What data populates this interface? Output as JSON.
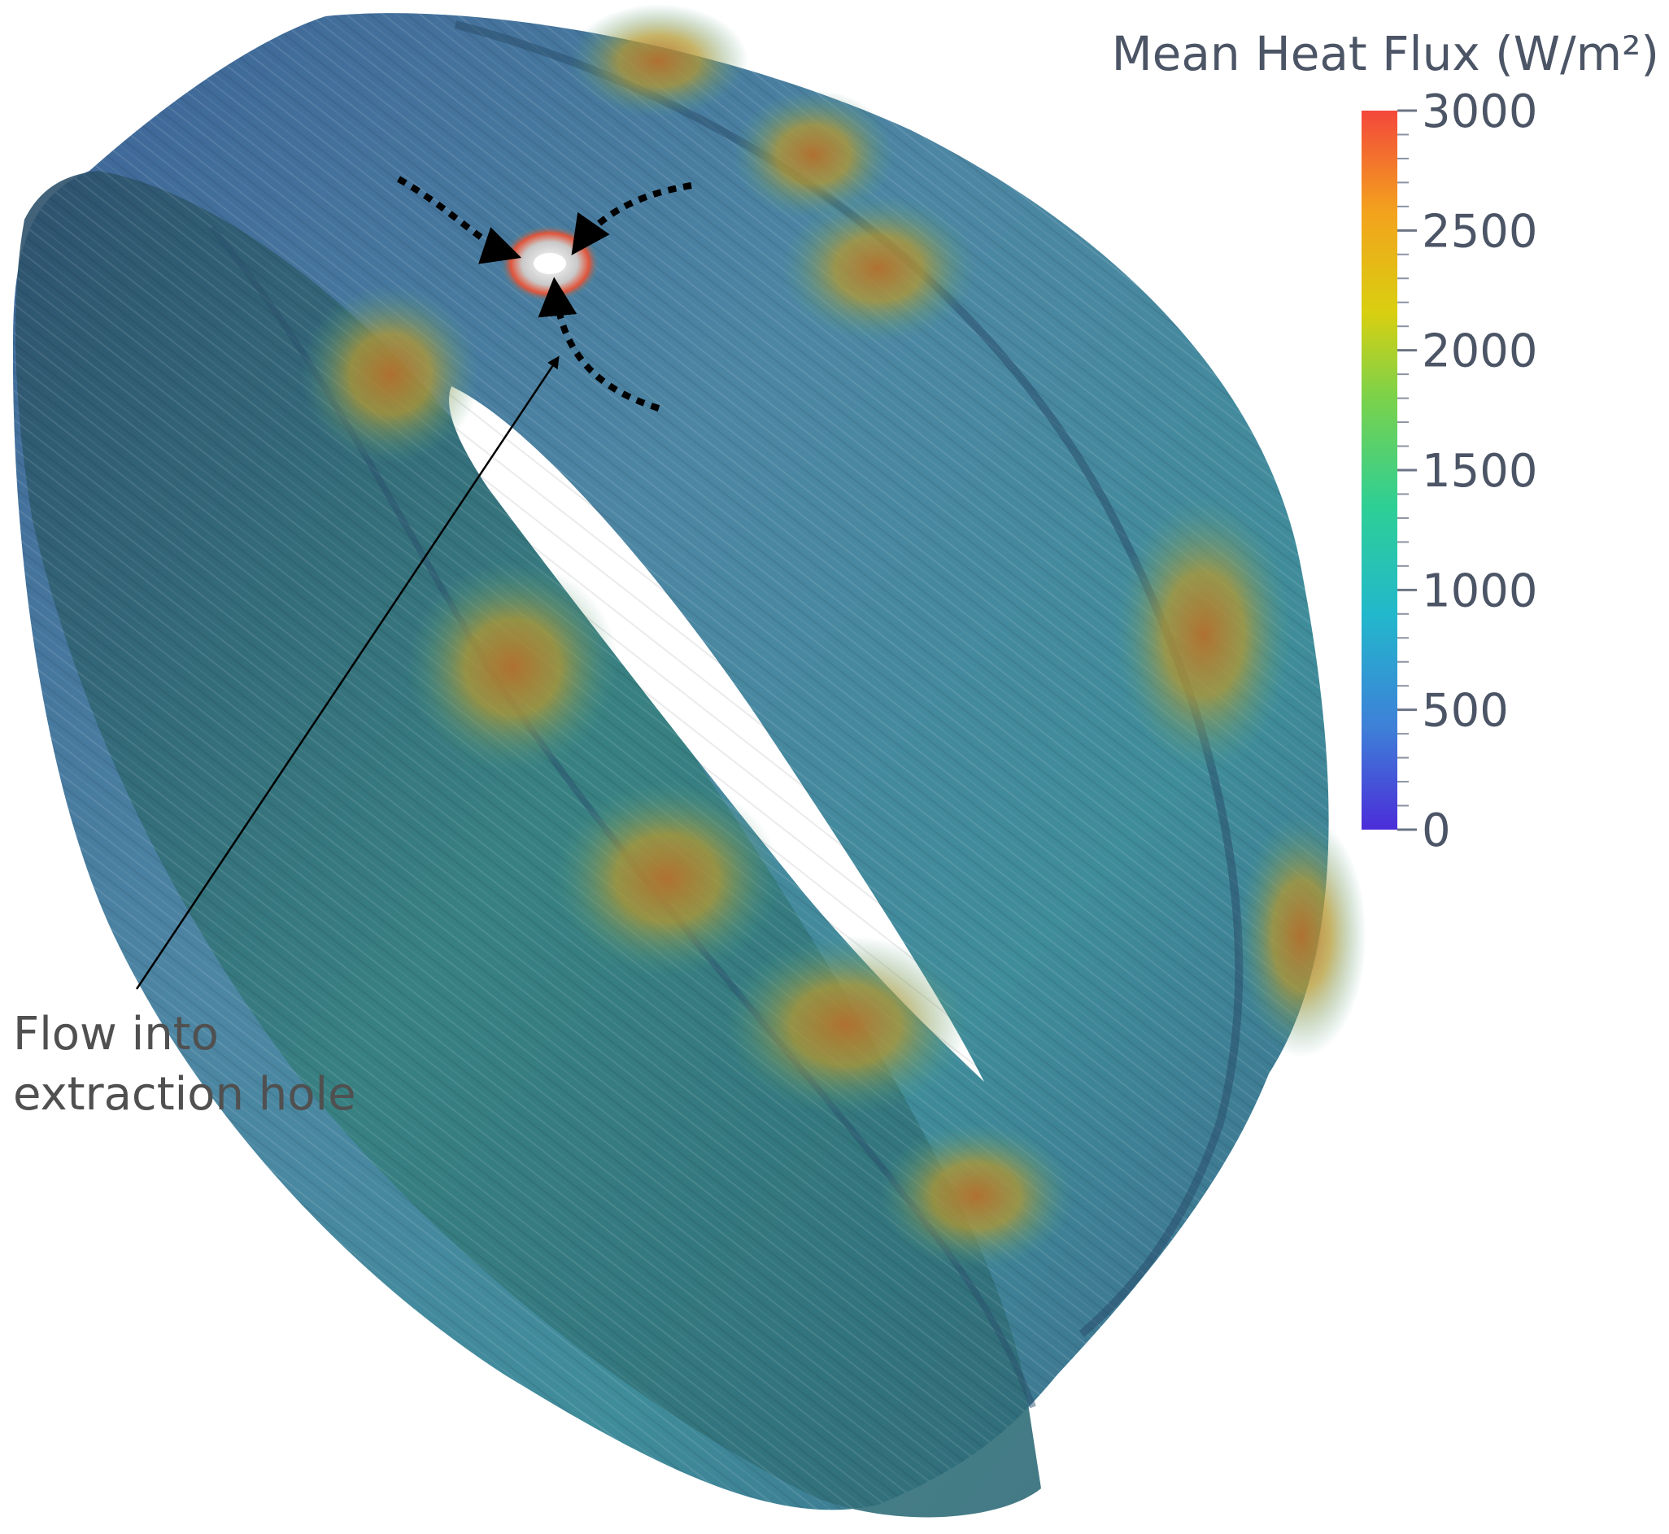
{
  "colorbar": {
    "title": "Mean Heat Flux (W/m²)",
    "min": 0,
    "max": 3000,
    "ticks": [
      {
        "value": 3000,
        "label": "3000"
      },
      {
        "value": 2500,
        "label": "2500"
      },
      {
        "value": 2000,
        "label": "2000"
      },
      {
        "value": 1500,
        "label": "1500"
      },
      {
        "value": 1000,
        "label": "1000"
      },
      {
        "value": 500,
        "label": "500"
      },
      {
        "value": 0,
        "label": "0"
      }
    ],
    "colormap": [
      "#4b2dd9",
      "#3e7fd8",
      "#22b8cc",
      "#2ecf95",
      "#7ad24b",
      "#d9cf10",
      "#f3a21d",
      "#f3473b"
    ]
  },
  "annotation": {
    "line1": "Flow into",
    "line2": "extraction hole"
  },
  "colors": {
    "ring_base": "#3f6795",
    "ring_inner": "#2f5f7f",
    "hotspot": "#b58a2c",
    "hole": "#d9d9d9"
  }
}
